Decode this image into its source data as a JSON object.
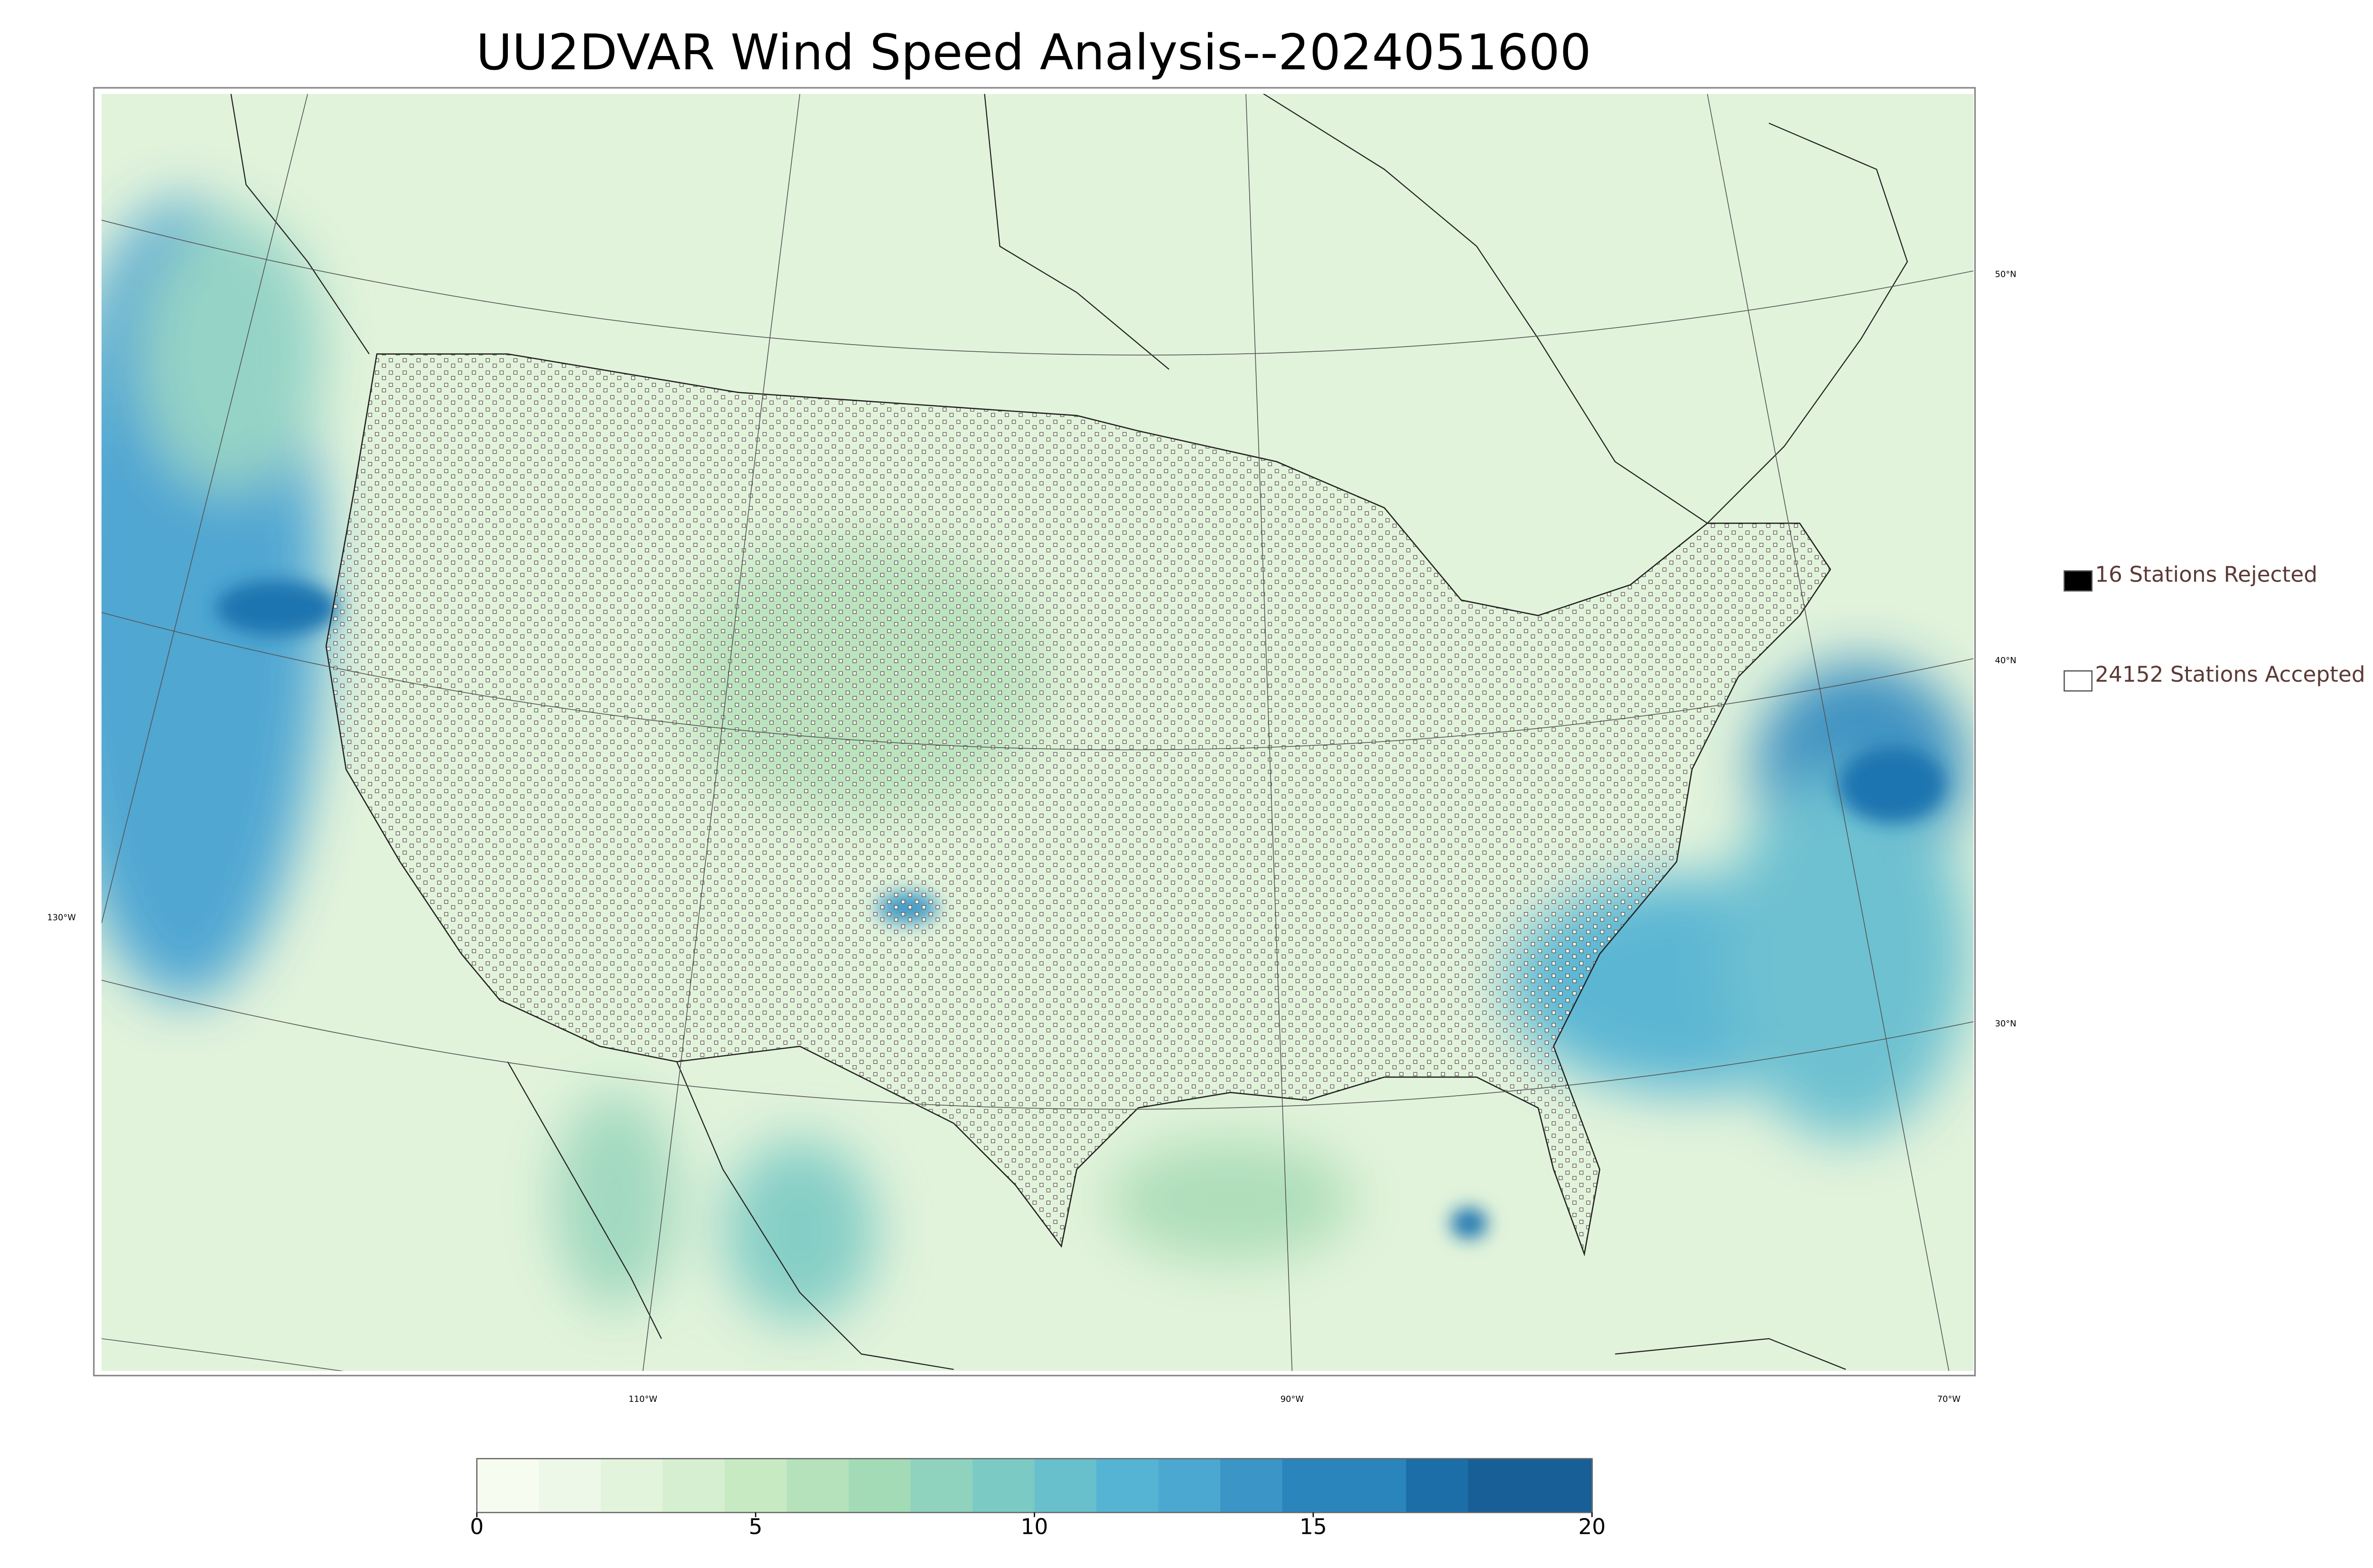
{
  "title": "UU2DVAR Wind Speed Analysis--2024051600",
  "map": {
    "lat_labels": [
      "50°N",
      "40°N",
      "30°N"
    ],
    "lon_labels": [
      "130°W",
      "110°W",
      "90°W",
      "70°W"
    ]
  },
  "legend": {
    "items": [
      {
        "label": "16 Stations Rejected",
        "color": "#000000"
      },
      {
        "label": "24152 Stations Accepted",
        "color": "#ffffff"
      }
    ]
  },
  "colorbar": {
    "range": [
      0,
      20
    ],
    "ticks": [
      0,
      5,
      10,
      15,
      20
    ],
    "colors": [
      "#f7fcf0",
      "#eef8e8",
      "#e3f4dd",
      "#d6efd0",
      "#c8eac3",
      "#b5e2ba",
      "#a3dbb7",
      "#8fd3be",
      "#7bcbc4",
      "#68c0cd",
      "#55b4d3",
      "#4ba9d1",
      "#3b95c6",
      "#2a85bc",
      "#2a85bc",
      "#1b6ea8",
      "#175f96",
      "#175f96"
    ]
  }
}
